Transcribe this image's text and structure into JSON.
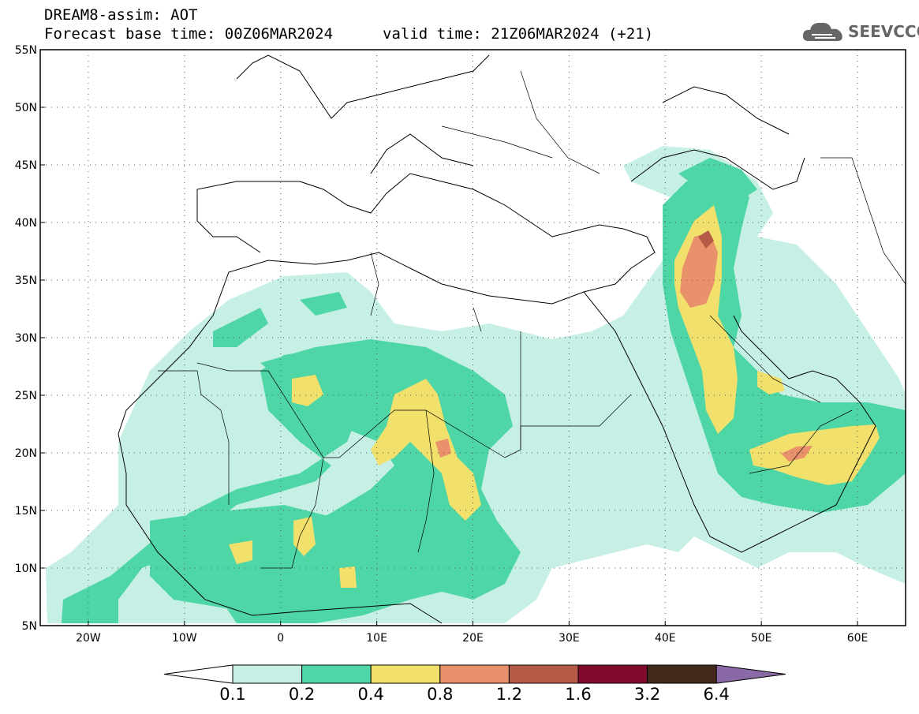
{
  "header": {
    "line1": "DREAM8-assim: AOT",
    "line2": "Forecast base time: 00Z06MAR2024",
    "valid": "valid time: 21Z06MAR2024 (+21)"
  },
  "logo": {
    "text": "SEEVCCC",
    "icon": "cloud-icon"
  },
  "map": {
    "lon_labels": [
      "20W",
      "10W",
      "0",
      "10E",
      "20E",
      "30E",
      "40E",
      "50E",
      "60E"
    ],
    "lon_values": [
      -20,
      -10,
      0,
      10,
      20,
      30,
      40,
      50,
      60
    ],
    "lat_labels": [
      "55N",
      "50N",
      "45N",
      "40N",
      "35N",
      "30N",
      "25N",
      "20N",
      "15N",
      "10N",
      "5N"
    ],
    "lat_values": [
      55,
      50,
      45,
      40,
      35,
      30,
      25,
      20,
      15,
      10,
      5
    ],
    "lon_range": [
      -25,
      65
    ],
    "lat_range": [
      5,
      55
    ],
    "grid": "dotted"
  },
  "colorbar": {
    "labels": [
      "0.1",
      "0.2",
      "0.4",
      "0.8",
      "1.2",
      "1.6",
      "3.2",
      "6.4"
    ],
    "colors": [
      "#c6f0e6",
      "#4fd6a6",
      "#f2e06c",
      "#e8916a",
      "#b65a48",
      "#7f0a2c",
      "#43291a",
      "#8a6aa6"
    ]
  }
}
